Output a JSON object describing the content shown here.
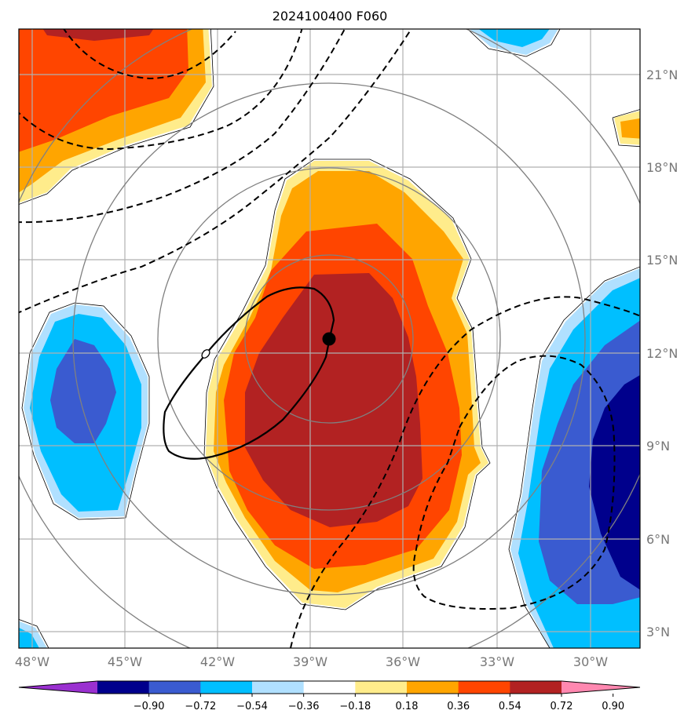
{
  "title": "2024100400 F060",
  "lon_labels": [
    "48°W",
    "45°W",
    "42°W",
    "39°W",
    "36°W",
    "33°W",
    "30°W"
  ],
  "lat_labels": [
    "21°N",
    "18°N",
    "15°N",
    "12°N",
    "9°N",
    "6°N",
    "3°N"
  ],
  "colorbar": {
    "ticks": [
      "−0.90",
      "−0.72",
      "−0.54",
      "−0.36",
      "−0.18",
      "0.18",
      "0.36",
      "0.54",
      "0.72",
      "0.90"
    ],
    "colors": [
      "#9a30d0",
      "#00008c",
      "#3a5bd0",
      "#00bfff",
      "#b0e0ff",
      "#ffffff",
      "#ffec8b",
      "#ffa500",
      "#ff4500",
      "#b22222",
      "#ff88b0"
    ]
  },
  "map": {
    "center_marker": "black-dot",
    "range_rings": 4
  }
}
